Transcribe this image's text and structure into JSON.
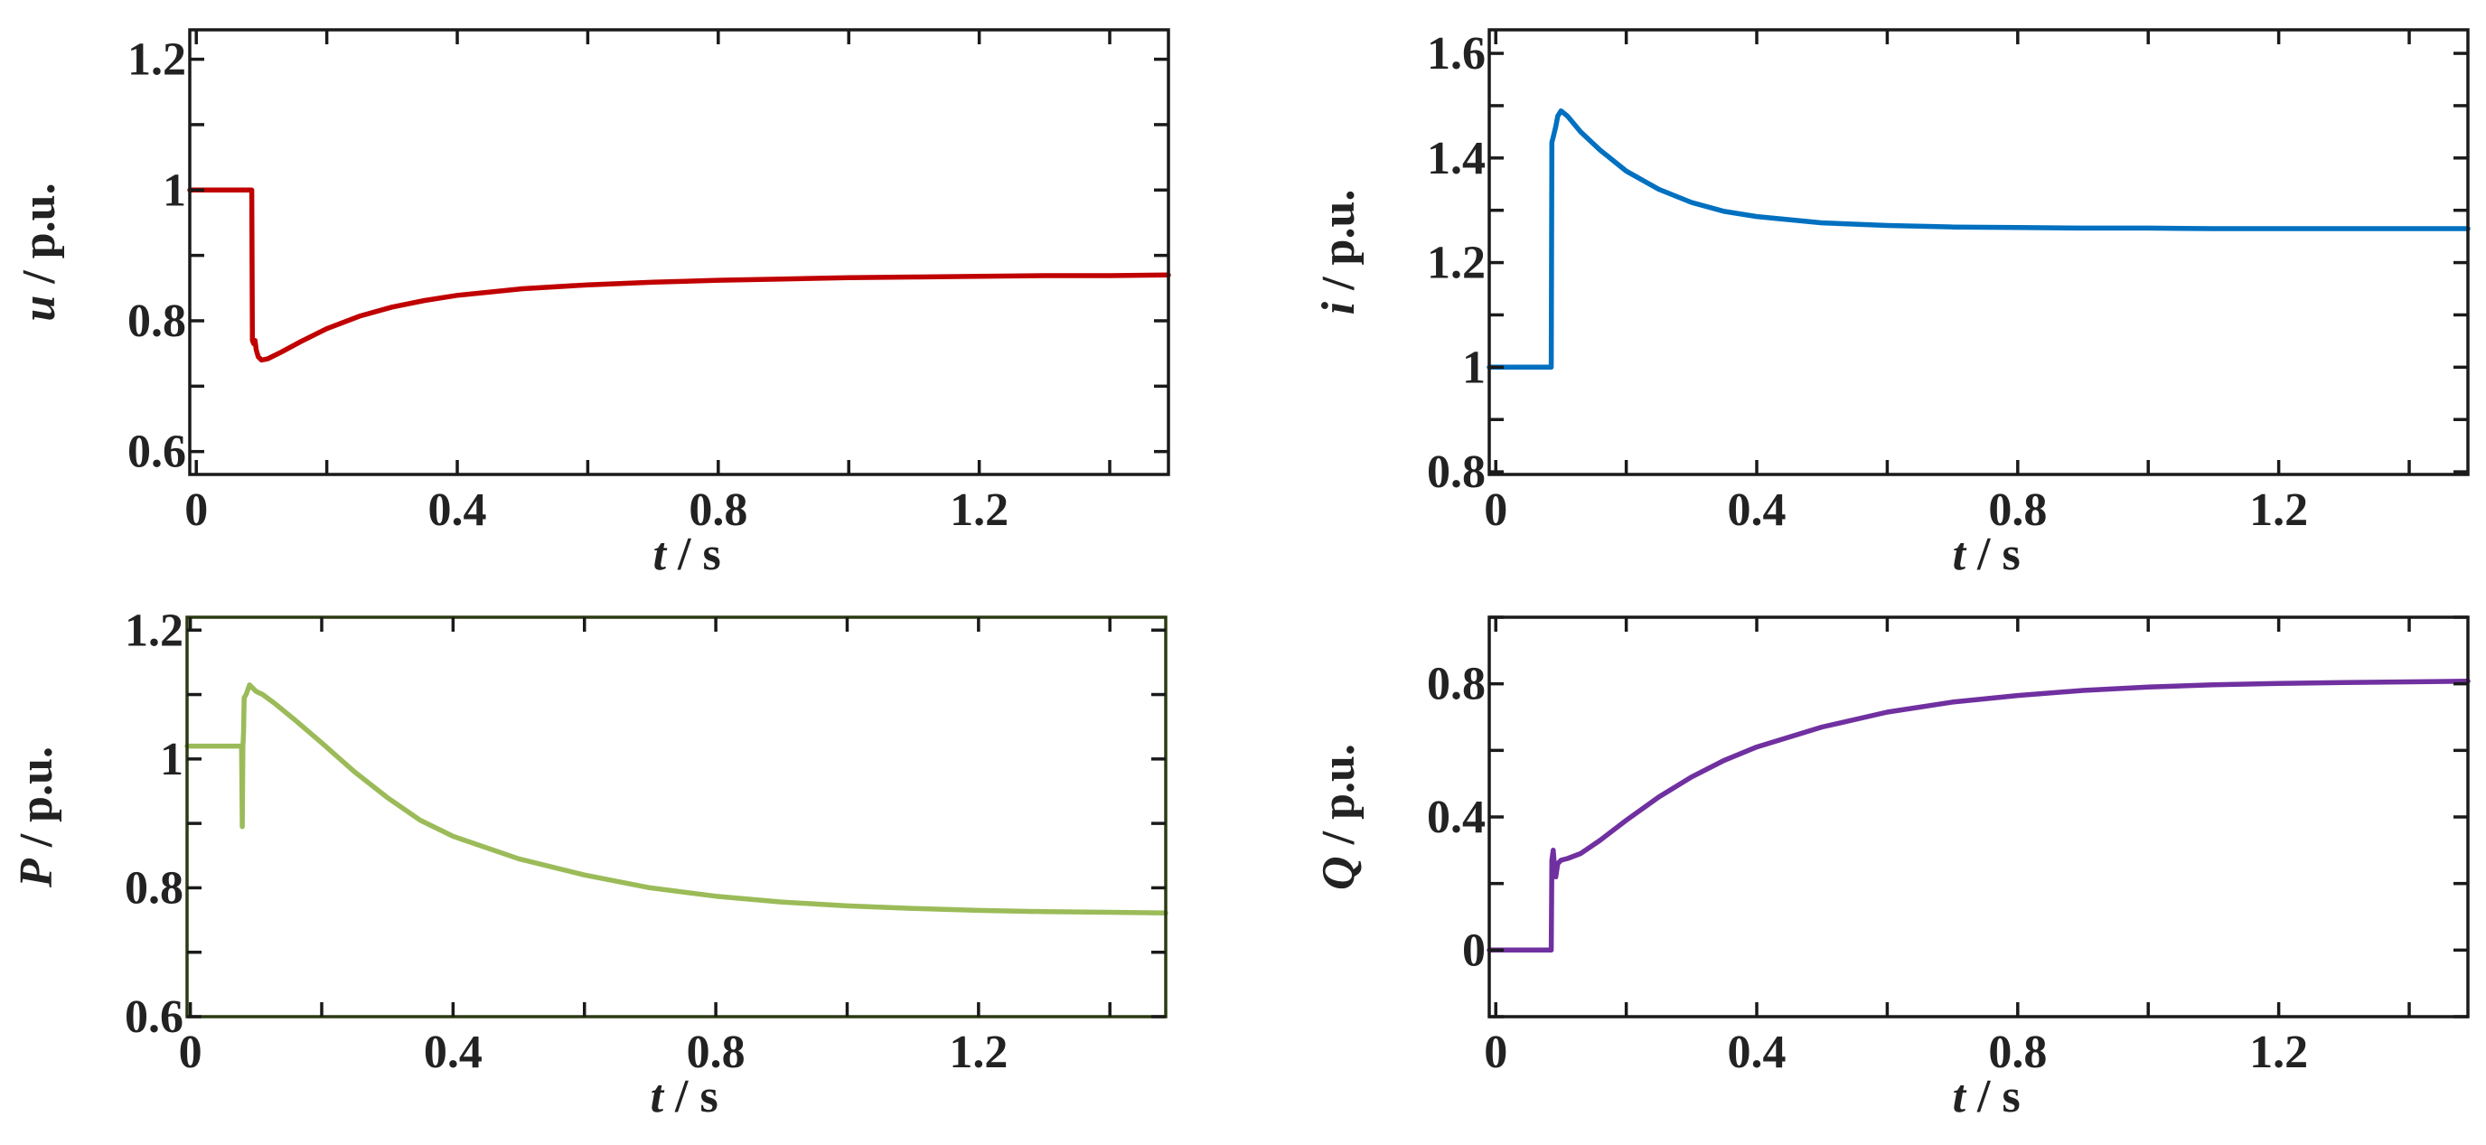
{
  "chart_data": [
    {
      "id": "u",
      "type": "line",
      "title": "",
      "ylabel_symbol": "u",
      "ylabel_unit": " / p.u.",
      "xlabel_symbol": "t",
      "xlabel_unit": " / s",
      "xlim": [
        -0.01,
        1.49
      ],
      "ylim": [
        0.565,
        1.245
      ],
      "xticks": [
        0,
        0.4,
        0.8,
        1.2
      ],
      "xtick_labels": [
        "0",
        "0.4",
        "0.8",
        "1.2"
      ],
      "xticks_minor": [
        0.2,
        0.6,
        1.0,
        1.4
      ],
      "yticks": [
        0.6,
        0.8,
        1.0,
        1.2
      ],
      "ytick_labels": [
        "0.6",
        "0.8",
        "1",
        "1.2"
      ],
      "yticks_minor": [
        0.7,
        0.9,
        1.1
      ],
      "frame_color": "#1a1a1a",
      "series": [
        {
          "name": "u",
          "color": "#c00000",
          "x": [
            -0.01,
            0.085,
            0.086,
            0.088,
            0.09,
            0.092,
            0.095,
            0.1,
            0.11,
            0.13,
            0.16,
            0.2,
            0.25,
            0.3,
            0.35,
            0.4,
            0.5,
            0.6,
            0.7,
            0.8,
            0.9,
            1.0,
            1.1,
            1.2,
            1.3,
            1.4,
            1.49
          ],
          "y": [
            1.0,
            1.0,
            0.77,
            0.765,
            0.77,
            0.755,
            0.745,
            0.74,
            0.742,
            0.752,
            0.768,
            0.788,
            0.807,
            0.821,
            0.831,
            0.839,
            0.849,
            0.855,
            0.859,
            0.862,
            0.864,
            0.866,
            0.867,
            0.868,
            0.869,
            0.869,
            0.87
          ]
        }
      ]
    },
    {
      "id": "i",
      "type": "line",
      "title": "",
      "ylabel_symbol": "i",
      "ylabel_unit": " / p.u.",
      "xlabel_symbol": "t",
      "xlabel_unit": " / s",
      "xlim": [
        -0.01,
        1.49
      ],
      "ylim": [
        0.795,
        1.645
      ],
      "xticks": [
        0,
        0.4,
        0.8,
        1.2
      ],
      "xtick_labels": [
        "0",
        "0.4",
        "0.8",
        "1.2"
      ],
      "xticks_minor": [
        0.2,
        0.6,
        1.0,
        1.4
      ],
      "yticks": [
        0.8,
        1.0,
        1.2,
        1.4,
        1.6
      ],
      "ytick_labels": [
        "0.8",
        "1",
        "1.2",
        "1.4",
        "1.6"
      ],
      "yticks_minor": [
        0.9,
        1.1,
        1.3,
        1.5
      ],
      "frame_color": "#1a1a1a",
      "series": [
        {
          "name": "i",
          "color": "#0070c0",
          "x": [
            -0.01,
            0.085,
            0.086,
            0.088,
            0.09,
            0.092,
            0.095,
            0.1,
            0.11,
            0.13,
            0.16,
            0.2,
            0.25,
            0.3,
            0.35,
            0.4,
            0.5,
            0.6,
            0.7,
            0.8,
            0.9,
            1.0,
            1.1,
            1.2,
            1.3,
            1.4,
            1.49
          ],
          "y": [
            1.0,
            1.0,
            1.43,
            1.44,
            1.45,
            1.46,
            1.48,
            1.49,
            1.48,
            1.45,
            1.415,
            1.375,
            1.34,
            1.315,
            1.298,
            1.288,
            1.276,
            1.271,
            1.268,
            1.267,
            1.266,
            1.266,
            1.265,
            1.265,
            1.265,
            1.265,
            1.265
          ]
        }
      ]
    },
    {
      "id": "P",
      "type": "line",
      "title": "",
      "ylabel_symbol": "P",
      "ylabel_unit": " / p.u.",
      "xlabel_symbol": "t",
      "xlabel_unit": " / s",
      "xlim": [
        -0.005,
        1.485
      ],
      "ylim": [
        0.6,
        1.22
      ],
      "xticks": [
        0,
        0.4,
        0.8,
        1.2
      ],
      "xtick_labels": [
        "0",
        "0.4",
        "0.8",
        "1.2"
      ],
      "xticks_minor": [
        0.2,
        0.6,
        1.0,
        1.4
      ],
      "yticks": [
        0.6,
        0.8,
        1.0,
        1.2
      ],
      "ytick_labels": [
        "0.6",
        "0.8",
        "1",
        "1.2"
      ],
      "yticks_minor": [
        0.7,
        0.9,
        1.1
      ],
      "frame_color": "#2b3a12",
      "series": [
        {
          "name": "P",
          "color": "#9bbb59",
          "x": [
            -0.005,
            0.078,
            0.079,
            0.08,
            0.081,
            0.082,
            0.085,
            0.09,
            0.095,
            0.1,
            0.11,
            0.13,
            0.16,
            0.2,
            0.25,
            0.3,
            0.35,
            0.4,
            0.5,
            0.6,
            0.7,
            0.8,
            0.9,
            1.0,
            1.1,
            1.2,
            1.3,
            1.4,
            1.485
          ],
          "y": [
            1.02,
            1.02,
            0.895,
            1.02,
            1.04,
            1.095,
            1.1,
            1.115,
            1.11,
            1.105,
            1.1,
            1.085,
            1.06,
            1.025,
            0.98,
            0.94,
            0.905,
            0.88,
            0.845,
            0.82,
            0.8,
            0.787,
            0.778,
            0.772,
            0.768,
            0.765,
            0.763,
            0.762,
            0.761
          ]
        }
      ]
    },
    {
      "id": "Q",
      "type": "line",
      "title": "",
      "ylabel_symbol": "Q",
      "ylabel_unit": " / p.u.",
      "xlabel_symbol": "t",
      "xlabel_unit": " / s",
      "xlim": [
        -0.01,
        1.49
      ],
      "ylim": [
        -0.2,
        1.0
      ],
      "xticks": [
        0,
        0.4,
        0.8,
        1.2
      ],
      "xtick_labels": [
        "0",
        "0.4",
        "0.8",
        "1.2"
      ],
      "xticks_minor": [
        0.2,
        0.6,
        1.0,
        1.4
      ],
      "yticks": [
        0,
        0.4,
        0.8
      ],
      "ytick_labels": [
        "0",
        "0.4",
        "0.8"
      ],
      "yticks_minor": [
        -0.2,
        0.2,
        0.6,
        1.0
      ],
      "frame_color": "#1a1a1a",
      "series": [
        {
          "name": "Q",
          "color": "#7030a0",
          "x": [
            -0.01,
            0.085,
            0.086,
            0.088,
            0.09,
            0.092,
            0.095,
            0.1,
            0.11,
            0.13,
            0.16,
            0.2,
            0.25,
            0.3,
            0.35,
            0.4,
            0.5,
            0.6,
            0.7,
            0.8,
            0.9,
            1.0,
            1.1,
            1.2,
            1.3,
            1.4,
            1.49
          ],
          "y": [
            0.0,
            0.0,
            0.27,
            0.3,
            0.25,
            0.22,
            0.26,
            0.27,
            0.275,
            0.29,
            0.33,
            0.39,
            0.46,
            0.52,
            0.57,
            0.61,
            0.67,
            0.715,
            0.745,
            0.765,
            0.78,
            0.79,
            0.797,
            0.801,
            0.804,
            0.806,
            0.808
          ]
        }
      ]
    }
  ]
}
